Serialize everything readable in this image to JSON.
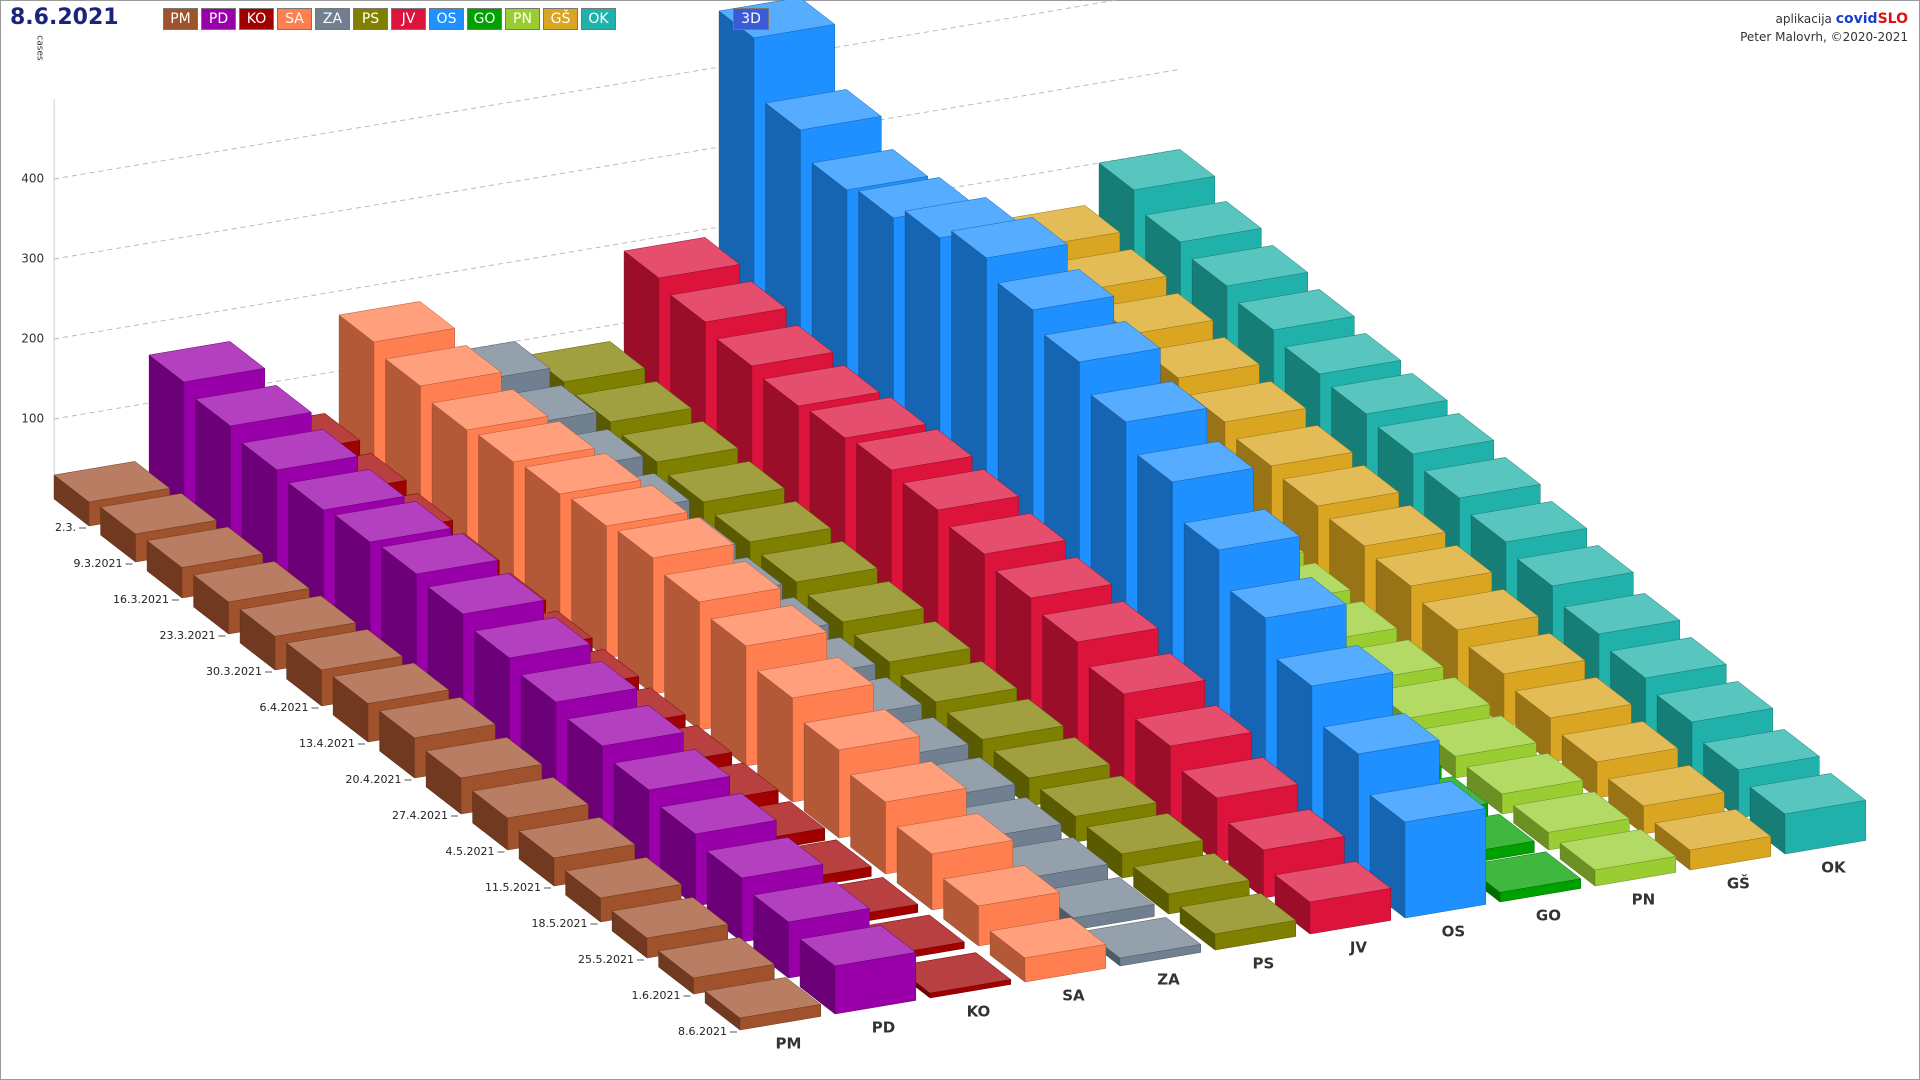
{
  "header": {
    "app_label": "aplikacija",
    "brand_1": "covid",
    "brand_2": "SLO",
    "author": "Peter Malovrh, ©2020-2021",
    "mode_button": "3D"
  },
  "chart_data": {
    "type": "bar3d",
    "title": "8.6.2021",
    "y_label": "cases",
    "categories": [
      "2.3.",
      "9.3.2021",
      "16.3.2021",
      "23.3.2021",
      "30.3.2021",
      "6.4.2021",
      "13.4.2021",
      "20.4.2021",
      "27.4.2021",
      "4.5.2021",
      "11.5.2021",
      "18.5.2021",
      "25.5.2021",
      "1.6.2021",
      "8.6.2021"
    ],
    "ylim": [
      0,
      500
    ],
    "yticks": [
      100,
      200,
      300,
      400
    ],
    "grid": true,
    "series": [
      {
        "name": "PM",
        "color": "#a0522d",
        "values": [
          30,
          35,
          38,
          40,
          42,
          45,
          48,
          50,
          45,
          40,
          35,
          30,
          25,
          20,
          15
        ]
      },
      {
        "name": "PD",
        "color": "#9900aa",
        "values": [
          160,
          150,
          140,
          135,
          140,
          145,
          140,
          130,
          120,
          110,
          100,
          90,
          80,
          70,
          60
        ]
      },
      {
        "name": "KO",
        "color": "#a00000",
        "values": [
          50,
          45,
          40,
          35,
          30,
          28,
          25,
          22,
          20,
          18,
          15,
          12,
          10,
          8,
          6
        ]
      },
      {
        "name": "SA",
        "color": "#ff7f50",
        "values": [
          170,
          160,
          150,
          155,
          160,
          165,
          170,
          160,
          150,
          130,
          110,
          90,
          70,
          50,
          30
        ]
      },
      {
        "name": "ZA",
        "color": "#708090",
        "values": [
          100,
          90,
          80,
          70,
          60,
          55,
          50,
          45,
          40,
          35,
          30,
          25,
          20,
          15,
          10
        ]
      },
      {
        "name": "PS",
        "color": "#808000",
        "values": [
          80,
          75,
          70,
          65,
          60,
          55,
          50,
          45,
          40,
          38,
          35,
          32,
          30,
          25,
          20
        ]
      },
      {
        "name": "JV",
        "color": "#dc143c",
        "values": [
          190,
          180,
          170,
          165,
          170,
          175,
          170,
          160,
          150,
          140,
          120,
          100,
          80,
          60,
          40
        ]
      },
      {
        "name": "OS",
        "color": "#1e90ff",
        "values": [
          470,
          400,
          370,
          380,
          400,
          420,
          400,
          380,
          350,
          320,
          280,
          240,
          200,
          160,
          120
        ]
      },
      {
        "name": "GO",
        "color": "#00a000",
        "values": [
          40,
          38,
          36,
          34,
          32,
          30,
          28,
          26,
          24,
          22,
          20,
          18,
          16,
          14,
          12
        ]
      },
      {
        "name": "PN",
        "color": "#9acd32",
        "values": [
          60,
          55,
          50,
          48,
          45,
          42,
          40,
          38,
          35,
          32,
          30,
          27,
          25,
          22,
          20
        ]
      },
      {
        "name": "GŠ",
        "color": "#daa520",
        "values": [
          150,
          140,
          130,
          120,
          110,
          100,
          95,
          90,
          85,
          75,
          65,
          55,
          45,
          35,
          25
        ]
      },
      {
        "name": "OK",
        "color": "#20b2aa",
        "values": [
          200,
          180,
          170,
          160,
          150,
          145,
          140,
          130,
          120,
          110,
          95,
          85,
          75,
          60,
          50
        ]
      }
    ]
  }
}
